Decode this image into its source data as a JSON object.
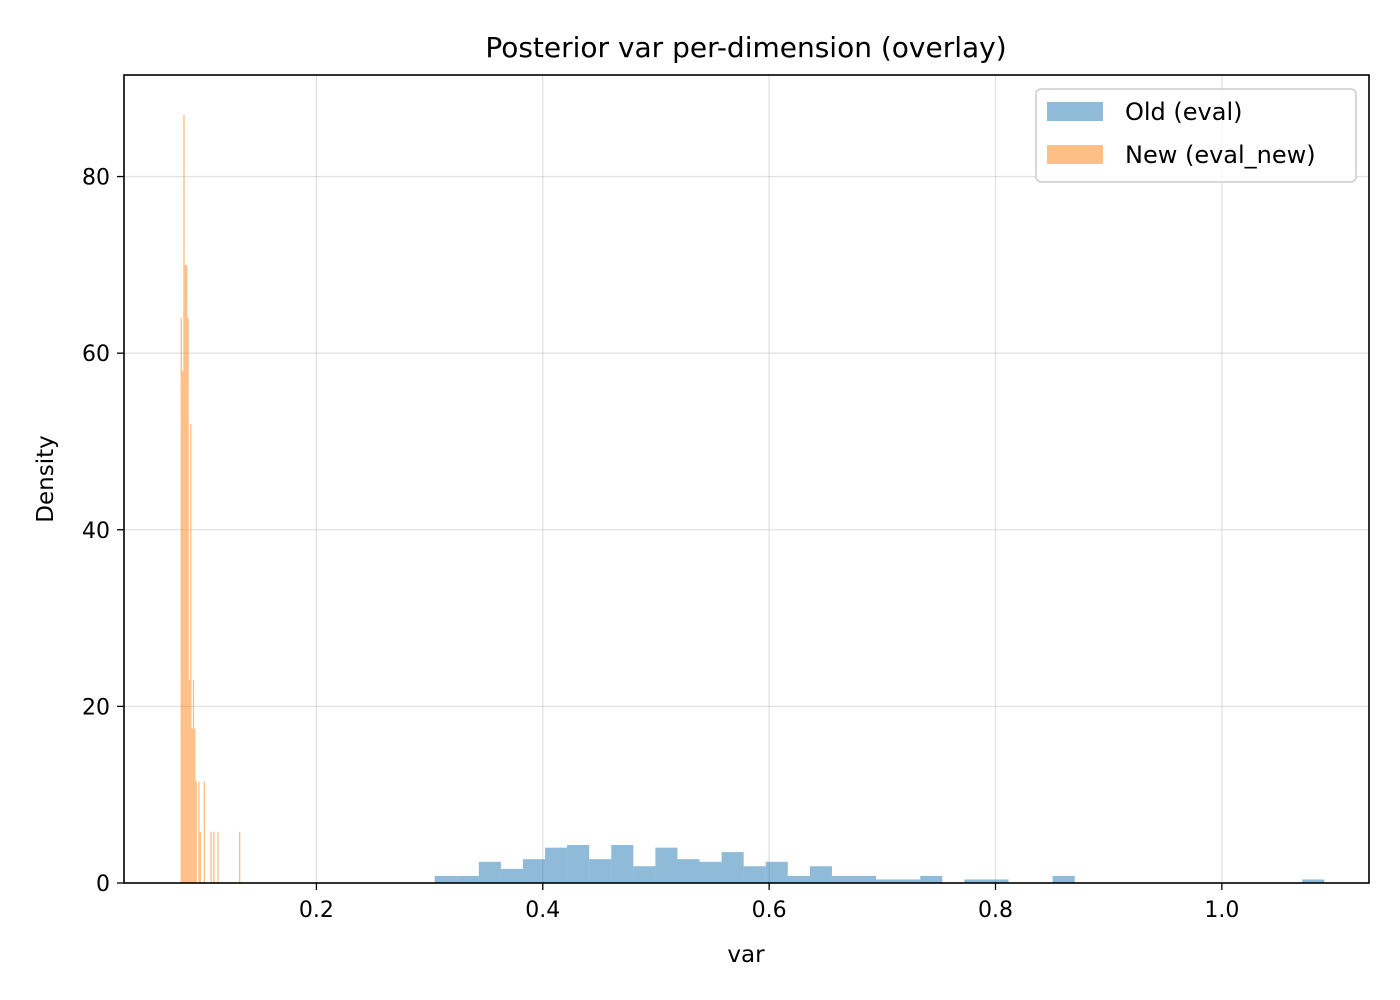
{
  "chart_data": {
    "type": "bar",
    "title": "Posterior var per-dimension (overlay)",
    "xlabel": "var",
    "ylabel": "Density",
    "xlim": [
      0.03,
      1.13
    ],
    "ylim": [
      0,
      91.5
    ],
    "xticks": [
      0.2,
      0.4,
      0.6,
      0.8,
      1.0
    ],
    "xtick_labels": [
      "0.2",
      "0.4",
      "0.6",
      "0.8",
      "1.0"
    ],
    "yticks": [
      0,
      20,
      40,
      60,
      80
    ],
    "ytick_labels": [
      "0",
      "20",
      "40",
      "60",
      "80"
    ],
    "grid": true,
    "legend_position": "top-right",
    "series": [
      {
        "name": "Old (eval)",
        "color": "#1f77b4",
        "alpha": 0.5,
        "bins": [
          {
            "x0": 0.3045,
            "x1": 0.324,
            "y": 0.8
          },
          {
            "x0": 0.324,
            "x1": 0.3435,
            "y": 0.8
          },
          {
            "x0": 0.3435,
            "x1": 0.363,
            "y": 2.4
          },
          {
            "x0": 0.363,
            "x1": 0.3825,
            "y": 1.6
          },
          {
            "x0": 0.3825,
            "x1": 0.402,
            "y": 2.7
          },
          {
            "x0": 0.402,
            "x1": 0.4215,
            "y": 4.0
          },
          {
            "x0": 0.4215,
            "x1": 0.441,
            "y": 4.3
          },
          {
            "x0": 0.441,
            "x1": 0.4605,
            "y": 2.7
          },
          {
            "x0": 0.4605,
            "x1": 0.48,
            "y": 4.3
          },
          {
            "x0": 0.48,
            "x1": 0.4995,
            "y": 1.9
          },
          {
            "x0": 0.4995,
            "x1": 0.519,
            "y": 4.0
          },
          {
            "x0": 0.519,
            "x1": 0.5385,
            "y": 2.7
          },
          {
            "x0": 0.5385,
            "x1": 0.558,
            "y": 2.4
          },
          {
            "x0": 0.558,
            "x1": 0.5775,
            "y": 3.5
          },
          {
            "x0": 0.5775,
            "x1": 0.597,
            "y": 1.9
          },
          {
            "x0": 0.597,
            "x1": 0.6165,
            "y": 2.4
          },
          {
            "x0": 0.6165,
            "x1": 0.636,
            "y": 0.8
          },
          {
            "x0": 0.636,
            "x1": 0.6555,
            "y": 1.9
          },
          {
            "x0": 0.6555,
            "x1": 0.675,
            "y": 0.8
          },
          {
            "x0": 0.675,
            "x1": 0.6945,
            "y": 0.8
          },
          {
            "x0": 0.6945,
            "x1": 0.714,
            "y": 0.4
          },
          {
            "x0": 0.714,
            "x1": 0.7335,
            "y": 0.4
          },
          {
            "x0": 0.7335,
            "x1": 0.753,
            "y": 0.8
          },
          {
            "x0": 0.7725,
            "x1": 0.792,
            "y": 0.4
          },
          {
            "x0": 0.792,
            "x1": 0.8115,
            "y": 0.4
          },
          {
            "x0": 0.8505,
            "x1": 0.87,
            "y": 0.8
          },
          {
            "x0": 1.071,
            "x1": 1.0905,
            "y": 0.4
          }
        ]
      },
      {
        "name": "New (eval_new)",
        "color": "#ff7f0e",
        "alpha": 0.5,
        "bins": [
          {
            "x0": 0.08,
            "x1": 0.0812,
            "y": 64
          },
          {
            "x0": 0.0812,
            "x1": 0.0824,
            "y": 58
          },
          {
            "x0": 0.0824,
            "x1": 0.0836,
            "y": 87
          },
          {
            "x0": 0.0836,
            "x1": 0.0848,
            "y": 70
          },
          {
            "x0": 0.0848,
            "x1": 0.086,
            "y": 70
          },
          {
            "x0": 0.086,
            "x1": 0.0872,
            "y": 64
          },
          {
            "x0": 0.0872,
            "x1": 0.0884,
            "y": 23
          },
          {
            "x0": 0.0884,
            "x1": 0.0896,
            "y": 52
          },
          {
            "x0": 0.0896,
            "x1": 0.0908,
            "y": 17.5
          },
          {
            "x0": 0.0908,
            "x1": 0.092,
            "y": 23
          },
          {
            "x0": 0.092,
            "x1": 0.0932,
            "y": 17.5
          },
          {
            "x0": 0.0932,
            "x1": 0.0944,
            "y": 11.5
          },
          {
            "x0": 0.0956,
            "x1": 0.0968,
            "y": 11.5
          },
          {
            "x0": 0.0968,
            "x1": 0.098,
            "y": 5.8
          },
          {
            "x0": 0.1004,
            "x1": 0.1016,
            "y": 11.5
          },
          {
            "x0": 0.1064,
            "x1": 0.1076,
            "y": 5.8
          },
          {
            "x0": 0.1088,
            "x1": 0.11,
            "y": 5.8
          },
          {
            "x0": 0.1124,
            "x1": 0.1136,
            "y": 5.8
          },
          {
            "x0": 0.1316,
            "x1": 0.1328,
            "y": 5.8
          }
        ]
      }
    ]
  }
}
